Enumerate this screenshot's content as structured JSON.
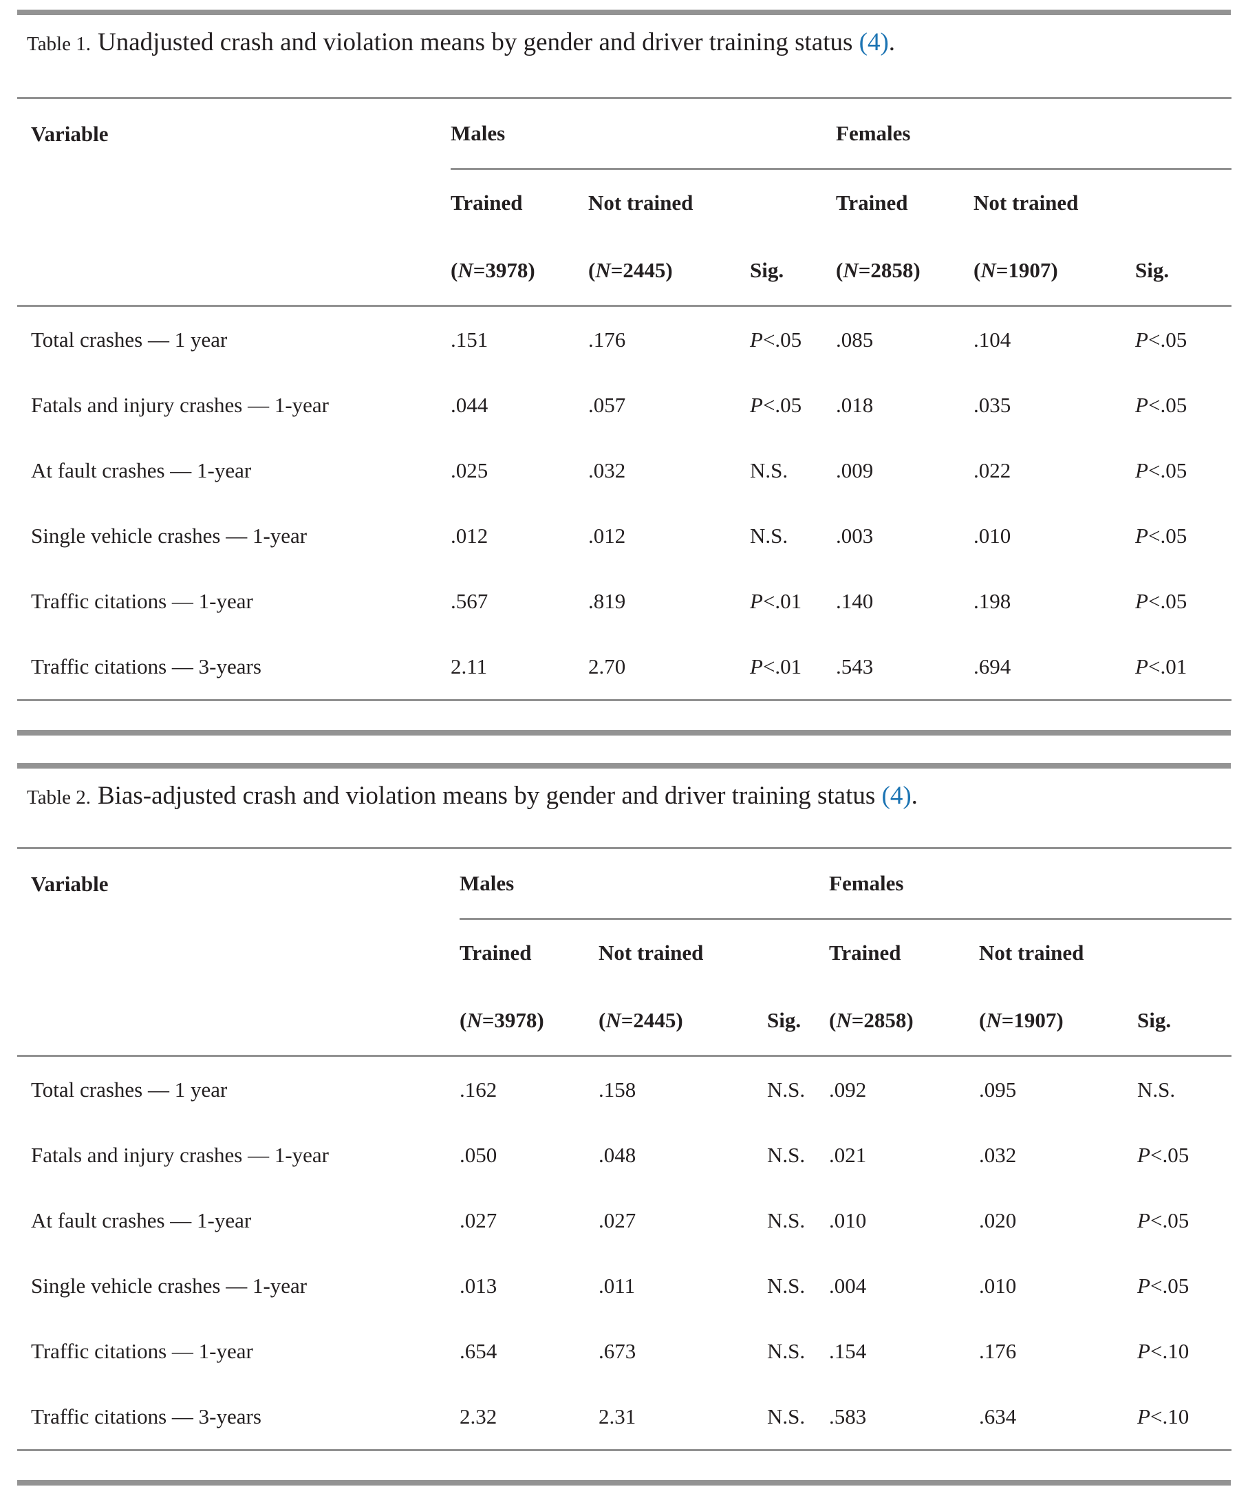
{
  "colors": {
    "text": "#231f20",
    "rule": "#919191",
    "link": "#1c74b3"
  },
  "tables": [
    {
      "caption": {
        "label": "Table 1.",
        "title": "Unadjusted crash and violation means by gender and driver training status",
        "reference": "(4)",
        "period": "."
      },
      "header": {
        "variable": "Variable",
        "groups": [
          "Males",
          "Females"
        ],
        "sub": [
          "Trained",
          "Not trained",
          "Trained",
          "Not trained"
        ],
        "counts": [
          "(N=3978)",
          "(N=2445)",
          "(N=2858)",
          "(N=1907)"
        ],
        "sig": "Sig."
      },
      "rows": [
        {
          "variable": "Total crashes — 1 year",
          "values": [
            ".151",
            ".176",
            "P<.05",
            ".085",
            ".104",
            "P<.05"
          ]
        },
        {
          "variable": "Fatals and injury crashes — 1-year",
          "values": [
            ".044",
            ".057",
            "P<.05",
            ".018",
            ".035",
            "P<.05"
          ]
        },
        {
          "variable": "At fault crashes — 1-year",
          "values": [
            ".025",
            ".032",
            "N.S.",
            ".009",
            ".022",
            "P<.05"
          ]
        },
        {
          "variable": "Single vehicle crashes — 1-year",
          "values": [
            ".012",
            ".012",
            "N.S.",
            ".003",
            ".010",
            "P<.05"
          ]
        },
        {
          "variable": "Traffic citations — 1-year",
          "values": [
            ".567",
            ".819",
            "P<.01",
            ".140",
            ".198",
            "P<.05"
          ]
        },
        {
          "variable": "Traffic citations — 3-years",
          "values": [
            "2.11",
            "2.70",
            "P<.01",
            ".543",
            ".694",
            "P<.01"
          ]
        }
      ]
    },
    {
      "caption": {
        "label": "Table 2.",
        "title": "Bias-adjusted crash and violation means by gender and driver training status",
        "reference": "(4)",
        "period": "."
      },
      "header": {
        "variable": "Variable",
        "groups": [
          "Males",
          "Females"
        ],
        "sub": [
          "Trained",
          "Not trained",
          "Trained",
          "Not trained"
        ],
        "counts": [
          "(N=3978)",
          "(N=2445)",
          "(N=2858)",
          "(N=1907)"
        ],
        "sig": "Sig."
      },
      "rows": [
        {
          "variable": "Total crashes — 1 year",
          "values": [
            ".162",
            ".158",
            "N.S.",
            ".092",
            ".095",
            "N.S."
          ]
        },
        {
          "variable": "Fatals and injury crashes — 1-year",
          "values": [
            ".050",
            ".048",
            "N.S.",
            ".021",
            ".032",
            "P<.05"
          ]
        },
        {
          "variable": "At fault crashes — 1-year",
          "values": [
            ".027",
            ".027",
            "N.S.",
            ".010",
            ".020",
            "P<.05"
          ]
        },
        {
          "variable": "Single vehicle crashes — 1-year",
          "values": [
            ".013",
            ".011",
            "N.S.",
            ".004",
            ".010",
            "P<.05"
          ]
        },
        {
          "variable": "Traffic citations — 1-year",
          "values": [
            ".654",
            ".673",
            "N.S.",
            ".154",
            ".176",
            "P<.10"
          ]
        },
        {
          "variable": "Traffic citations — 3-years",
          "values": [
            "2.32",
            "2.31",
            "N.S.",
            ".583",
            ".634",
            "P<.10"
          ]
        }
      ]
    }
  ]
}
